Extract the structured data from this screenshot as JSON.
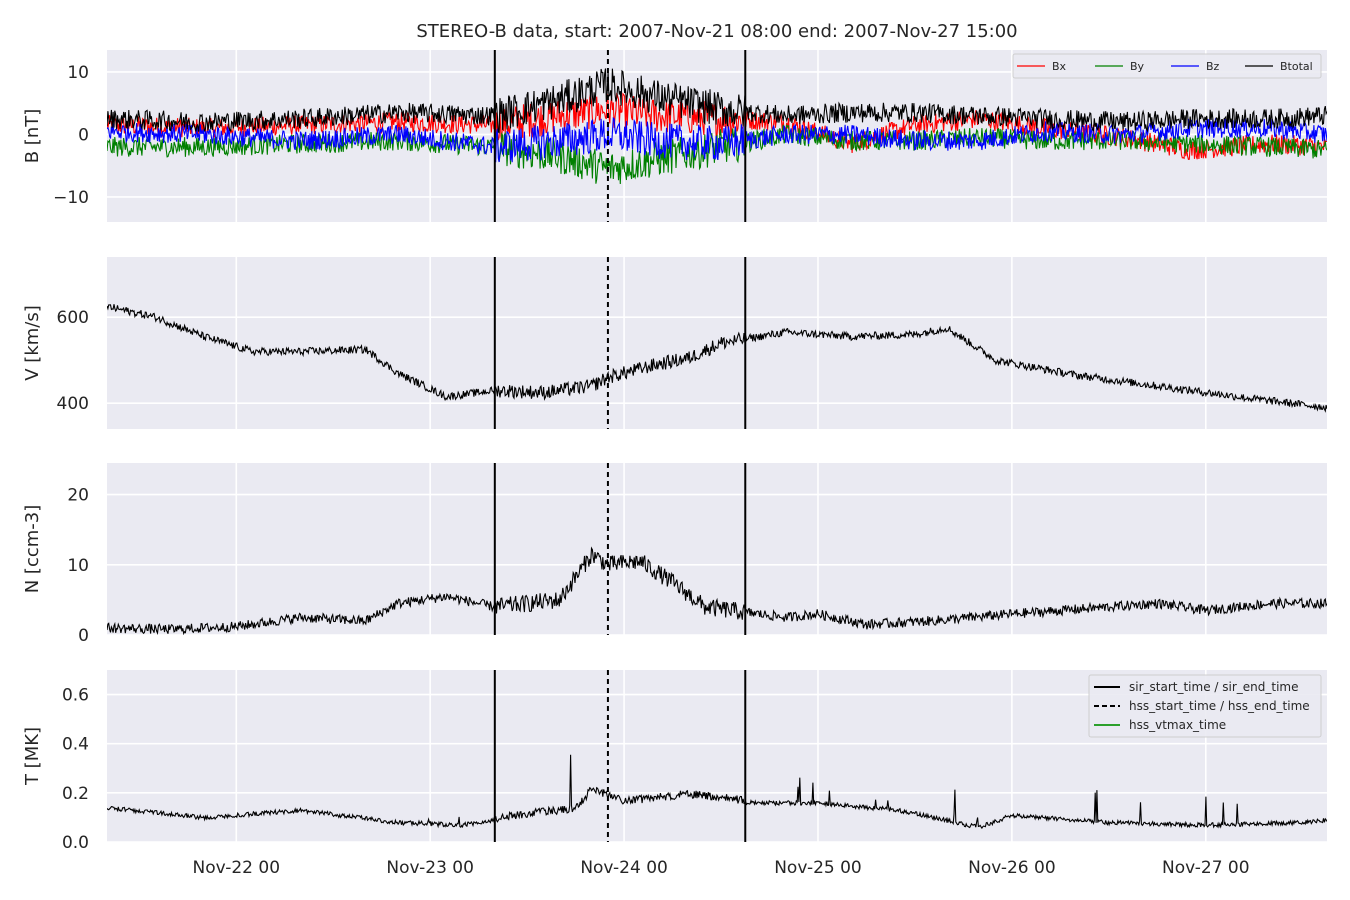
{
  "title": "STEREO-B data, start: 2007-Nov-21 08:00  end: 2007-Nov-27 15:00",
  "chart_data": [
    {
      "type": "line",
      "panel": "B",
      "ylabel": "B [nT]",
      "ylim": [
        -14,
        13.5
      ],
      "yticks": [
        10,
        0,
        -10
      ],
      "ytick_labels": [
        "10",
        "0",
        "−10"
      ],
      "xlim": [
        "2007-11-21T08:00",
        "2007-11-27T15:00"
      ],
      "grid": true,
      "legend": {
        "placement": "top-right",
        "columns": 4
      },
      "series": [
        {
          "name": "Bx",
          "color": "#ff0000",
          "x": [
            "2007-11-21T08:00",
            "2007-11-21T20:00",
            "2007-11-22T08:00",
            "2007-11-22T20:00",
            "2007-11-23T08:00",
            "2007-11-23T16:00",
            "2007-11-23T22:00",
            "2007-11-24T04:00",
            "2007-11-24T12:00",
            "2007-11-24T20:00",
            "2007-11-25T04:00",
            "2007-11-25T12:00",
            "2007-11-25T20:00",
            "2007-11-26T04:00",
            "2007-11-26T14:00",
            "2007-11-26T22:00",
            "2007-11-27T08:00",
            "2007-11-27T15:00"
          ],
          "y": [
            1.5,
            1.0,
            1.5,
            2.0,
            1.5,
            3.0,
            4.0,
            3.0,
            2.5,
            2.0,
            -1.5,
            1.5,
            2.5,
            1.0,
            -0.5,
            -2.5,
            -1.5,
            -2.0
          ]
        },
        {
          "name": "By",
          "color": "#008000",
          "x": [
            "2007-11-21T08:00",
            "2007-11-21T20:00",
            "2007-11-22T08:00",
            "2007-11-22T20:00",
            "2007-11-23T08:00",
            "2007-11-23T16:00",
            "2007-11-23T22:00",
            "2007-11-24T04:00",
            "2007-11-24T12:00",
            "2007-11-24T20:00",
            "2007-11-25T04:00",
            "2007-11-25T12:00",
            "2007-11-25T20:00",
            "2007-11-26T04:00",
            "2007-11-26T14:00",
            "2007-11-26T22:00",
            "2007-11-27T08:00",
            "2007-11-27T15:00"
          ],
          "y": [
            -2.0,
            -2.0,
            -1.5,
            -1.0,
            -2.0,
            -3.5,
            -5.5,
            -4.0,
            -2.0,
            0.0,
            -1.0,
            -1.0,
            -0.5,
            -1.0,
            -1.0,
            -1.5,
            -2.0,
            -2.5
          ]
        },
        {
          "name": "Bz",
          "color": "#0000ff",
          "x": [
            "2007-11-21T08:00",
            "2007-11-21T20:00",
            "2007-11-22T08:00",
            "2007-11-22T20:00",
            "2007-11-23T08:00",
            "2007-11-23T16:00",
            "2007-11-23T22:00",
            "2007-11-24T04:00",
            "2007-11-24T12:00",
            "2007-11-24T20:00",
            "2007-11-25T04:00",
            "2007-11-25T12:00",
            "2007-11-25T20:00",
            "2007-11-26T04:00",
            "2007-11-26T14:00",
            "2007-11-26T22:00",
            "2007-11-27T08:00",
            "2007-11-27T15:00"
          ],
          "y": [
            0.5,
            0.0,
            -1.0,
            0.0,
            -2.0,
            -1.0,
            0.0,
            -1.0,
            -1.5,
            0.0,
            0.0,
            -1.0,
            -1.0,
            0.5,
            0.0,
            1.0,
            1.0,
            0.0
          ]
        },
        {
          "name": "Btotal",
          "color": "#000000",
          "x": [
            "2007-11-21T08:00",
            "2007-11-21T20:00",
            "2007-11-22T08:00",
            "2007-11-22T20:00",
            "2007-11-23T08:00",
            "2007-11-23T16:00",
            "2007-11-23T22:00",
            "2007-11-24T04:00",
            "2007-11-24T12:00",
            "2007-11-24T20:00",
            "2007-11-25T04:00",
            "2007-11-25T12:00",
            "2007-11-25T20:00",
            "2007-11-26T04:00",
            "2007-11-26T14:00",
            "2007-11-26T22:00",
            "2007-11-27T08:00",
            "2007-11-27T15:00"
          ],
          "y": [
            2.5,
            2.0,
            2.5,
            3.5,
            3.0,
            5.5,
            8.0,
            6.0,
            4.0,
            3.0,
            3.5,
            3.5,
            3.0,
            2.5,
            2.0,
            2.5,
            2.5,
            3.0
          ]
        }
      ]
    },
    {
      "type": "line",
      "panel": "V",
      "ylabel": "V [km/s]",
      "ylim": [
        340,
        740
      ],
      "yticks": [
        600,
        400
      ],
      "ytick_labels": [
        "600",
        "400"
      ],
      "grid": true,
      "series": [
        {
          "color": "#000000",
          "x": [
            "2007-11-21T08:00",
            "2007-11-21T14:00",
            "2007-11-21T20:00",
            "2007-11-22T02:00",
            "2007-11-22T08:00",
            "2007-11-22T16:00",
            "2007-11-22T20:00",
            "2007-11-23T02:00",
            "2007-11-23T08:00",
            "2007-11-23T14:00",
            "2007-11-23T20:00",
            "2007-11-23T22:00",
            "2007-11-24T04:00",
            "2007-11-24T08:00",
            "2007-11-24T12:00",
            "2007-11-24T20:00",
            "2007-11-25T04:00",
            "2007-11-25T12:00",
            "2007-11-25T16:00",
            "2007-11-25T22:00",
            "2007-11-26T08:00",
            "2007-11-26T16:00",
            "2007-11-26T22:00",
            "2007-11-27T06:00",
            "2007-11-27T15:00"
          ],
          "y": [
            625,
            600,
            555,
            520,
            520,
            525,
            470,
            415,
            430,
            425,
            440,
            460,
            490,
            505,
            540,
            565,
            555,
            560,
            575,
            500,
            465,
            445,
            430,
            410,
            390
          ]
        }
      ]
    },
    {
      "type": "line",
      "panel": "N",
      "ylabel": "N [ccm-3]",
      "ylim": [
        0,
        24.5
      ],
      "yticks": [
        20,
        10,
        0
      ],
      "ytick_labels": [
        "20",
        "10",
        "0"
      ],
      "grid": true,
      "series": [
        {
          "color": "#000000",
          "x": [
            "2007-11-21T08:00",
            "2007-11-21T16:00",
            "2007-11-22T00:00",
            "2007-11-22T08:00",
            "2007-11-22T16:00",
            "2007-11-22T20:00",
            "2007-11-23T02:00",
            "2007-11-23T08:00",
            "2007-11-23T16:00",
            "2007-11-23T20:00",
            "2007-11-23T22:00",
            "2007-11-24T02:00",
            "2007-11-24T06:00",
            "2007-11-24T10:00",
            "2007-11-24T20:00",
            "2007-11-25T00:00",
            "2007-11-25T06:00",
            "2007-11-25T14:00",
            "2007-11-26T00:00",
            "2007-11-26T12:00",
            "2007-11-26T18:00",
            "2007-11-27T00:00",
            "2007-11-27T08:00",
            "2007-11-27T15:00"
          ],
          "y": [
            1.0,
            0.8,
            1.2,
            2.5,
            2.0,
            4.5,
            5.5,
            4.0,
            5.0,
            11.5,
            10.0,
            10.5,
            7.5,
            4.0,
            2.5,
            3.0,
            1.5,
            2.0,
            3.0,
            4.0,
            4.5,
            3.5,
            4.5,
            4.5
          ]
        }
      ]
    },
    {
      "type": "line",
      "panel": "T",
      "ylabel": "T [MK]",
      "ylim": [
        0,
        0.7
      ],
      "yticks": [
        0.6,
        0.4,
        0.2,
        0.0
      ],
      "ytick_labels": [
        "0.6",
        "0.4",
        "0.2",
        "0.0"
      ],
      "xticks": [
        "2007-11-22T00:00",
        "2007-11-23T00:00",
        "2007-11-24T00:00",
        "2007-11-25T00:00",
        "2007-11-26T00:00",
        "2007-11-27T00:00"
      ],
      "xtick_labels": [
        "Nov-22 00",
        "Nov-23 00",
        "Nov-24 00",
        "Nov-25 00",
        "Nov-26 00",
        "Nov-27 00"
      ],
      "grid": true,
      "legend": {
        "placement": "top-right",
        "columns": 1
      },
      "series": [
        {
          "color": "#000000",
          "x": [
            "2007-11-21T08:00",
            "2007-11-21T20:00",
            "2007-11-22T08:00",
            "2007-11-22T20:00",
            "2007-11-23T04:00",
            "2007-11-23T12:00",
            "2007-11-23T18:00",
            "2007-11-23T20:00",
            "2007-11-24T00:00",
            "2007-11-24T08:00",
            "2007-11-24T16:00",
            "2007-11-25T00:00",
            "2007-11-25T10:00",
            "2007-11-25T20:00",
            "2007-11-26T00:00",
            "2007-11-26T12:00",
            "2007-11-27T00:00",
            "2007-11-27T12:00",
            "2007-11-27T15:00"
          ],
          "y": [
            0.13,
            0.09,
            0.12,
            0.07,
            0.06,
            0.1,
            0.12,
            0.2,
            0.15,
            0.18,
            0.15,
            0.15,
            0.12,
            0.05,
            0.1,
            0.07,
            0.06,
            0.07,
            0.08
          ]
        }
      ],
      "markers": [
        {
          "name": "sir_start_time / sir_end_time",
          "style": "solid",
          "color": "#000000",
          "x": [
            "2007-11-23T08:00",
            "2007-11-24T15:00"
          ]
        },
        {
          "name": "hss_start_time / hss_end_time",
          "style": "dashed",
          "color": "#000000",
          "x": [
            "2007-11-23T22:00"
          ]
        },
        {
          "name": "hss_vtmax_time",
          "style": "solid",
          "color": "#2ca02c",
          "x": []
        }
      ]
    }
  ]
}
